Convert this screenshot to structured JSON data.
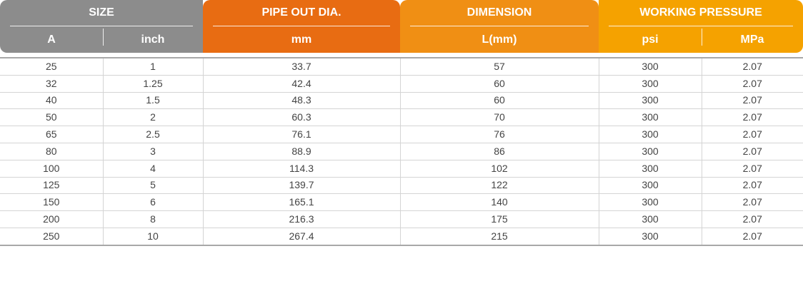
{
  "header": {
    "size": {
      "title": "SIZE",
      "col_a": "A",
      "col_inch": "inch"
    },
    "pipe_out_dia": {
      "title": "PIPE OUT DIA.",
      "unit": "mm"
    },
    "dimension": {
      "title": "DIMENSION",
      "unit": "L(mm)"
    },
    "working_pressure": {
      "title": "WORKING PRESSURE",
      "col_psi": "psi",
      "col_mpa": "MPa"
    },
    "colors": {
      "size": "#8c8c8c",
      "pipe": "#e86c12",
      "dimension": "#f08f14",
      "working": "#f5a200"
    }
  },
  "rows": [
    [
      "25",
      "1",
      "33.7",
      "57",
      "300",
      "2.07"
    ],
    [
      "32",
      "1.25",
      "42.4",
      "60",
      "300",
      "2.07"
    ],
    [
      "40",
      "1.5",
      "48.3",
      "60",
      "300",
      "2.07"
    ],
    [
      "50",
      "2",
      "60.3",
      "70",
      "300",
      "2.07"
    ],
    [
      "65",
      "2.5",
      "76.1",
      "76",
      "300",
      "2.07"
    ],
    [
      "80",
      "3",
      "88.9",
      "86",
      "300",
      "2.07"
    ],
    [
      "100",
      "4",
      "114.3",
      "102",
      "300",
      "2.07"
    ],
    [
      "125",
      "5",
      "139.7",
      "122",
      "300",
      "2.07"
    ],
    [
      "150",
      "6",
      "165.1",
      "140",
      "300",
      "2.07"
    ],
    [
      "200",
      "8",
      "216.3",
      "175",
      "300",
      "2.07"
    ],
    [
      "250",
      "10",
      "267.4",
      "215",
      "300",
      "2.07"
    ]
  ]
}
